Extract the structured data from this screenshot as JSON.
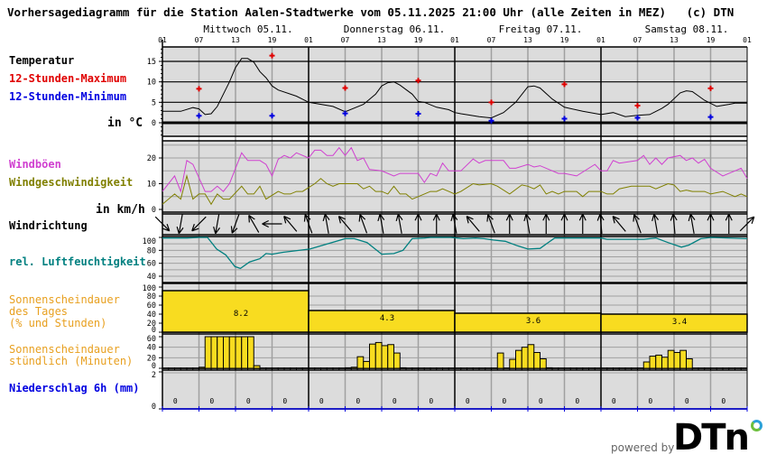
{
  "title": "Vorhersagediagramm für die Station Aalen-Stadtwerke vom 05.11.2025 21:00 Uhr (alle Zeiten in MEZ)   (c) DTN",
  "labels": {
    "temperature": "Temperatur",
    "max12": "12-Stunden-Maximum",
    "min12": "12-Stunden-Minimum",
    "temp_unit": "in °C",
    "gusts": "Windböen",
    "wind_speed": "Windgeschwindigkeit",
    "wind_unit": "in km/h",
    "wind_dir": "Windrichtung",
    "humidity": "rel. Luftfeuchtigkeit",
    "sun_daily": "Sonnenscheindauer\ndes Tages\n(% und Stunden)",
    "sun_hourly": "Sonnenscheindauer\nstündlich (Minuten)",
    "precip": "Niederschlag 6h (mm)"
  },
  "footer": {
    "powered_by": "powered by",
    "logo": "DTN"
  },
  "colors": {
    "panel_bg": "#dcdcdc",
    "grid": "#a0a0a0",
    "temperature": "#000000",
    "max": "#e00000",
    "min": "#0000e0",
    "gusts": "#d040d0",
    "wind_speed": "#808000",
    "humidity": "#008080",
    "sun": "#f8dc20",
    "sun_label": "#e8a020",
    "precip": "#0000e0"
  },
  "chart_data": {
    "type": "meteogram",
    "days": [
      "Mittwoch 05.11.",
      "Donnerstag 06.11.",
      "Freitag 07.11.",
      "Samstag 08.11."
    ],
    "hour_ticks": [
      "01",
      "07",
      "13",
      "19",
      "01",
      "07",
      "13",
      "19",
      "01",
      "07",
      "13",
      "19",
      "01",
      "07",
      "13",
      "19",
      "01"
    ],
    "x_unit": "hours from 05.11. 01:00",
    "temperature": {
      "yticks": [
        15,
        10,
        5,
        0
      ],
      "ylim": [
        -3,
        18
      ],
      "curve": [
        [
          0,
          2.8
        ],
        [
          3,
          2.8
        ],
        [
          5,
          3.7
        ],
        [
          6,
          3.4
        ],
        [
          7,
          2.0
        ],
        [
          8,
          2.2
        ],
        [
          9,
          4
        ],
        [
          11,
          10
        ],
        [
          12,
          13.5
        ],
        [
          13,
          15.7
        ],
        [
          14,
          15.7
        ],
        [
          15,
          14.8
        ],
        [
          16,
          12.5
        ],
        [
          17,
          11
        ],
        [
          18,
          9
        ],
        [
          19,
          8
        ],
        [
          22,
          6.5
        ],
        [
          24,
          5
        ],
        [
          28,
          4
        ],
        [
          30,
          2.7
        ],
        [
          33,
          4.5
        ],
        [
          35,
          7
        ],
        [
          36,
          9
        ],
        [
          37,
          9.8
        ],
        [
          38,
          10
        ],
        [
          39,
          9.2
        ],
        [
          41,
          7
        ],
        [
          42,
          5.2
        ],
        [
          43,
          5
        ],
        [
          45,
          3.8
        ],
        [
          47,
          3.2
        ],
        [
          48,
          2.5
        ],
        [
          49,
          2.2
        ],
        [
          52,
          1.5
        ],
        [
          54,
          1.2
        ],
        [
          56,
          2.5
        ],
        [
          58,
          5
        ],
        [
          60,
          8.8
        ],
        [
          61,
          9
        ],
        [
          62,
          8.5
        ],
        [
          64,
          5.8
        ],
        [
          66,
          3.8
        ],
        [
          69,
          2.8
        ],
        [
          72,
          2.0
        ],
        [
          74,
          2.5
        ],
        [
          76,
          1.5
        ],
        [
          78,
          1.8
        ],
        [
          80,
          2.0
        ],
        [
          82,
          3.5
        ],
        [
          83,
          4.5
        ],
        [
          85,
          7.3
        ],
        [
          86,
          7.8
        ],
        [
          87,
          7.6
        ],
        [
          89,
          5.5
        ],
        [
          91,
          4.0
        ],
        [
          93,
          4.5
        ],
        [
          94,
          4.8
        ],
        [
          96,
          4.8
        ]
      ],
      "max12": [
        [
          6,
          8.3
        ],
        [
          18,
          16.4
        ],
        [
          30,
          8.5
        ],
        [
          42,
          10.3
        ],
        [
          54,
          5.0
        ],
        [
          66,
          9.4
        ],
        [
          78,
          4.2
        ],
        [
          90,
          8.4
        ]
      ],
      "min12": [
        [
          6,
          1.7
        ],
        [
          18,
          1.7
        ],
        [
          30,
          2.3
        ],
        [
          42,
          2.2
        ],
        [
          54,
          0.5
        ],
        [
          66,
          1.0
        ],
        [
          78,
          1.2
        ],
        [
          90,
          1.4
        ]
      ]
    },
    "wind": {
      "yticks": [
        20,
        10,
        0
      ],
      "ylim": [
        0,
        27
      ],
      "gusts": [
        [
          0,
          7
        ],
        [
          2,
          13
        ],
        [
          3,
          7
        ],
        [
          4,
          19
        ],
        [
          5,
          17.5
        ],
        [
          7,
          7
        ],
        [
          8,
          7
        ],
        [
          9,
          9
        ],
        [
          10,
          7
        ],
        [
          11,
          10
        ],
        [
          13,
          22
        ],
        [
          14,
          19
        ],
        [
          16,
          19
        ],
        [
          17,
          17.5
        ],
        [
          18,
          13
        ],
        [
          19,
          19.5
        ],
        [
          20,
          21
        ],
        [
          21,
          20
        ],
        [
          22,
          22
        ],
        [
          24,
          20
        ],
        [
          25,
          23
        ],
        [
          26,
          23
        ],
        [
          27,
          21
        ],
        [
          28,
          21
        ],
        [
          29,
          24
        ],
        [
          30,
          21
        ],
        [
          31,
          24
        ],
        [
          32,
          19
        ],
        [
          33,
          20
        ],
        [
          34,
          15.5
        ],
        [
          36,
          15
        ],
        [
          38,
          13
        ],
        [
          39,
          14
        ],
        [
          42,
          14
        ],
        [
          43,
          10.5
        ],
        [
          44,
          14
        ],
        [
          45,
          13
        ],
        [
          46,
          18
        ],
        [
          47,
          15
        ],
        [
          49,
          15
        ],
        [
          51,
          19.6
        ],
        [
          52,
          18
        ],
        [
          53,
          19
        ],
        [
          56,
          19
        ],
        [
          57,
          16
        ],
        [
          58,
          16
        ],
        [
          60,
          17.5
        ],
        [
          61,
          16.5
        ],
        [
          62,
          17
        ],
        [
          65,
          14
        ],
        [
          66,
          14
        ],
        [
          68,
          13
        ],
        [
          71,
          17.5
        ],
        [
          72,
          15
        ],
        [
          73,
          15
        ],
        [
          74,
          19
        ],
        [
          75,
          18
        ],
        [
          78,
          19
        ],
        [
          79,
          21
        ],
        [
          80,
          17.5
        ],
        [
          81,
          20
        ],
        [
          82,
          17.5
        ],
        [
          83,
          20
        ],
        [
          85,
          21
        ],
        [
          86,
          19
        ],
        [
          87,
          20
        ],
        [
          88,
          18
        ],
        [
          89,
          19.5
        ],
        [
          90,
          16
        ],
        [
          92,
          13
        ],
        [
          93,
          14
        ],
        [
          94,
          15
        ],
        [
          95,
          16
        ],
        [
          96,
          12
        ]
      ],
      "speed": [
        [
          0,
          2
        ],
        [
          2,
          6
        ],
        [
          3,
          4
        ],
        [
          4,
          13
        ],
        [
          5,
          4
        ],
        [
          6,
          6
        ],
        [
          7,
          6
        ],
        [
          8,
          2
        ],
        [
          9,
          6
        ],
        [
          10,
          4
        ],
        [
          11,
          4
        ],
        [
          13,
          9
        ],
        [
          14,
          6
        ],
        [
          15,
          6
        ],
        [
          16,
          9
        ],
        [
          17,
          4
        ],
        [
          19,
          7
        ],
        [
          20,
          6
        ],
        [
          21,
          6
        ],
        [
          22,
          7
        ],
        [
          23,
          7
        ],
        [
          24,
          8.5
        ],
        [
          25,
          10
        ],
        [
          26,
          12
        ],
        [
          27,
          10
        ],
        [
          28,
          9
        ],
        [
          29,
          10
        ],
        [
          32,
          10
        ],
        [
          33,
          8
        ],
        [
          34,
          9
        ],
        [
          35,
          7
        ],
        [
          36,
          7
        ],
        [
          37,
          6
        ],
        [
          38,
          9
        ],
        [
          39,
          6
        ],
        [
          40,
          6
        ],
        [
          41,
          4
        ],
        [
          42,
          5
        ],
        [
          43,
          6
        ],
        [
          44,
          7
        ],
        [
          45,
          7
        ],
        [
          46,
          8
        ],
        [
          47,
          7
        ],
        [
          48,
          6
        ],
        [
          49,
          7
        ],
        [
          50,
          8.5
        ],
        [
          51,
          10
        ],
        [
          52,
          9.5
        ],
        [
          54,
          10
        ],
        [
          55,
          9
        ],
        [
          57,
          6
        ],
        [
          59,
          9.5
        ],
        [
          60,
          9
        ],
        [
          61,
          8
        ],
        [
          62,
          9.5
        ],
        [
          63,
          6
        ],
        [
          64,
          7
        ],
        [
          65,
          6
        ],
        [
          66,
          7
        ],
        [
          68,
          7
        ],
        [
          69,
          5
        ],
        [
          70,
          7
        ],
        [
          72,
          7
        ],
        [
          73,
          6
        ],
        [
          74,
          6
        ],
        [
          75,
          8
        ],
        [
          77,
          9
        ],
        [
          80,
          9
        ],
        [
          81,
          8
        ],
        [
          83,
          10
        ],
        [
          84,
          9.5
        ],
        [
          85,
          7
        ],
        [
          86,
          7.5
        ],
        [
          87,
          7
        ],
        [
          89,
          7
        ],
        [
          90,
          6
        ],
        [
          92,
          7
        ],
        [
          94,
          5
        ],
        [
          95,
          6
        ],
        [
          96,
          5
        ]
      ],
      "direction_arrow_bearing_deg": [
        135,
        190,
        225,
        190,
        200,
        330,
        270,
        320,
        340,
        350,
        320,
        340,
        350,
        350,
        0,
        0,
        350,
        320,
        340,
        0,
        350,
        0,
        0,
        0,
        355,
        320,
        340,
        350,
        355,
        350,
        0,
        0,
        45
      ]
    },
    "humidity": {
      "yticks": [
        100,
        80,
        60,
        40
      ],
      "ylim": [
        30,
        100
      ],
      "curve": [
        [
          0,
          99
        ],
        [
          4,
          99
        ],
        [
          6,
          100
        ],
        [
          7.4,
          100
        ],
        [
          8.9,
          82
        ],
        [
          10.4,
          73
        ],
        [
          11.9,
          55
        ],
        [
          12.8,
          52
        ],
        [
          14.3,
          62
        ],
        [
          16,
          67
        ],
        [
          17,
          75
        ],
        [
          18,
          74
        ],
        [
          19.8,
          77
        ],
        [
          24.2,
          82
        ],
        [
          30,
          98
        ],
        [
          31.5,
          98
        ],
        [
          33.6,
          92
        ],
        [
          36,
          74
        ],
        [
          38,
          75
        ],
        [
          39.5,
          80
        ],
        [
          41,
          98
        ],
        [
          43,
          99
        ],
        [
          44,
          100
        ],
        [
          47.4,
          100
        ],
        [
          49.4,
          98
        ],
        [
          51.4,
          99
        ],
        [
          52.8,
          98
        ],
        [
          54.3,
          96
        ],
        [
          56.3,
          94
        ],
        [
          58.3,
          87
        ],
        [
          60,
          82
        ],
        [
          62,
          83
        ],
        [
          63.2,
          91
        ],
        [
          64.4,
          99
        ],
        [
          72,
          99
        ],
        [
          73,
          97
        ],
        [
          79,
          97
        ],
        [
          81,
          99
        ],
        [
          83,
          92
        ],
        [
          85.2,
          85
        ],
        [
          86.4,
          88
        ],
        [
          88.4,
          98
        ],
        [
          90.1,
          100
        ],
        [
          96,
          98
        ]
      ]
    },
    "sunshine_daily": {
      "yticks": [
        100,
        80,
        60,
        40,
        20,
        0
      ],
      "ylim": [
        0,
        100
      ],
      "percent": [
        92,
        48,
        42,
        40
      ],
      "hours": [
        "8.2",
        "4.3",
        "3.6",
        "3.4"
      ]
    },
    "sunshine_hourly": {
      "yticks": [
        60,
        40,
        20,
        0
      ],
      "ylim": [
        0,
        60
      ],
      "minutes": [
        [
          6,
          2
        ],
        [
          7,
          60
        ],
        [
          8,
          60
        ],
        [
          9,
          60
        ],
        [
          10,
          60
        ],
        [
          11,
          60
        ],
        [
          12,
          60
        ],
        [
          13,
          60
        ],
        [
          14,
          60
        ],
        [
          15,
          5
        ],
        [
          30,
          1
        ],
        [
          31,
          2
        ],
        [
          32,
          22
        ],
        [
          33,
          13
        ],
        [
          34,
          46
        ],
        [
          35,
          49
        ],
        [
          36,
          43
        ],
        [
          37,
          45
        ],
        [
          38,
          29
        ],
        [
          39,
          1
        ],
        [
          55,
          29
        ],
        [
          57,
          17
        ],
        [
          58,
          34
        ],
        [
          59,
          40
        ],
        [
          60,
          45
        ],
        [
          61,
          30
        ],
        [
          62,
          18
        ],
        [
          63,
          1
        ],
        [
          79,
          12
        ],
        [
          80,
          23
        ],
        [
          81,
          25
        ],
        [
          82,
          21
        ],
        [
          83,
          34
        ],
        [
          84,
          30
        ],
        [
          85,
          34
        ],
        [
          86,
          18
        ]
      ]
    },
    "precipitation": {
      "yticks": [
        2,
        0
      ],
      "ylim": [
        0,
        2
      ],
      "values_6h": [
        "0",
        "0",
        "0",
        "0",
        "0",
        "0",
        "0",
        "0",
        "0",
        "0",
        "0",
        "0",
        "0",
        "0",
        "0",
        "0"
      ]
    }
  }
}
